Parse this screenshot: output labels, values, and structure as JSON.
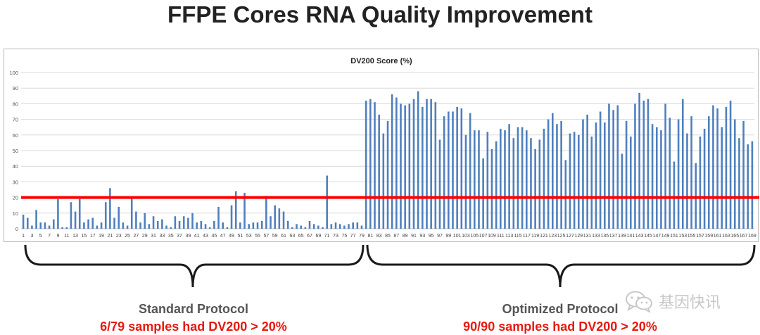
{
  "title": "FFPE Cores RNA Quality Improvement",
  "groups": [
    {
      "label": "Standard Protocol",
      "note": "6/79 samples had DV200 > 20%"
    },
    {
      "label": "Optimized Protocol",
      "note": "90/90 samples had DV200 > 20%"
    }
  ],
  "watermark": "基因快讯",
  "colors": {
    "bar": "#4f7fbd",
    "threshold": "#ff0000",
    "note": "#e8190f",
    "bracket": "#1a1a1a"
  },
  "chart_data": {
    "type": "bar",
    "title": "DV200 Score (%)",
    "ylim": [
      0,
      100
    ],
    "yticks": [
      0,
      10,
      20,
      30,
      40,
      50,
      60,
      70,
      80,
      90,
      100
    ],
    "grid": true,
    "threshold": 20,
    "categories": [
      "1",
      "2",
      "3",
      "4",
      "5",
      "6",
      "7",
      "8",
      "9",
      "10",
      "11",
      "12",
      "13",
      "14",
      "15",
      "16",
      "17",
      "18",
      "19",
      "20",
      "21",
      "22",
      "23",
      "24",
      "25",
      "26",
      "27",
      "28",
      "29",
      "30",
      "31",
      "32",
      "33",
      "34",
      "35",
      "36",
      "37",
      "38",
      "39",
      "40",
      "41",
      "42",
      "43",
      "44",
      "45",
      "46",
      "47",
      "48",
      "49",
      "50",
      "51",
      "52",
      "53",
      "54",
      "55",
      "56",
      "57",
      "58",
      "59",
      "60",
      "61",
      "62",
      "63",
      "64",
      "65",
      "66",
      "67",
      "68",
      "69",
      "70",
      "71",
      "72",
      "73",
      "74",
      "75",
      "76",
      "77",
      "78",
      "79",
      "80",
      "81",
      "82",
      "83",
      "84",
      "85",
      "86",
      "87",
      "88",
      "89",
      "90",
      "91",
      "92",
      "93",
      "94",
      "95",
      "96",
      "97",
      "98",
      "99",
      "100",
      "101",
      "102",
      "103",
      "104",
      "105",
      "106",
      "107",
      "108",
      "109",
      "110",
      "111",
      "112",
      "113",
      "114",
      "115",
      "116",
      "117",
      "118",
      "119",
      "120",
      "121",
      "122",
      "123",
      "124",
      "125",
      "126",
      "127",
      "128",
      "129",
      "130",
      "131",
      "132",
      "133",
      "134",
      "135",
      "136",
      "137",
      "138",
      "139",
      "140",
      "141",
      "142",
      "143",
      "144",
      "145",
      "146",
      "147",
      "148",
      "149",
      "150",
      "151",
      "152",
      "153",
      "154",
      "155",
      "156",
      "157",
      "158",
      "159",
      "160",
      "161",
      "162",
      "163",
      "164",
      "165",
      "166",
      "167",
      "168",
      "169"
    ],
    "values": [
      9,
      7,
      2,
      12,
      4,
      4,
      2,
      6,
      19,
      1,
      1,
      17,
      11,
      19,
      4,
      6,
      7,
      2,
      4,
      17,
      26,
      7,
      14,
      4,
      2,
      20,
      11,
      4,
      10,
      3,
      8,
      5,
      6,
      2,
      1,
      8,
      5,
      8,
      7,
      10,
      4,
      5,
      3,
      1,
      5,
      14,
      4,
      1,
      15,
      24,
      4,
      23,
      3,
      4,
      4,
      5,
      21,
      8,
      15,
      13,
      11,
      5,
      1,
      3,
      2,
      1,
      5,
      3,
      2,
      1,
      34,
      3,
      4,
      3,
      2,
      3,
      4,
      4,
      2,
      82,
      83,
      81,
      73,
      61,
      69,
      86,
      84,
      80,
      79,
      80,
      83,
      88,
      78,
      83,
      83,
      81,
      57,
      72,
      75,
      75,
      78,
      77,
      60,
      74,
      63,
      63,
      45,
      62,
      51,
      56,
      64,
      63,
      67,
      58,
      65,
      65,
      63,
      58,
      51,
      57,
      64,
      70,
      74,
      67,
      69,
      44,
      61,
      62,
      60,
      70,
      73,
      59,
      68,
      75,
      68,
      80,
      76,
      79,
      48,
      69,
      59,
      80,
      87,
      82,
      83,
      67,
      65,
      63,
      80,
      71,
      43,
      70,
      83,
      61,
      72,
      42,
      59,
      64,
      72,
      79,
      77,
      65,
      78,
      82,
      70,
      58,
      69,
      54,
      56
    ]
  }
}
